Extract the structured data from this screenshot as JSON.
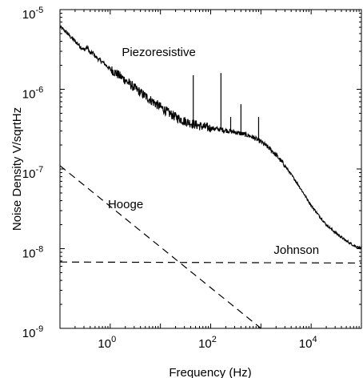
{
  "chart_data": {
    "type": "line",
    "title": "",
    "xlabel": "Frequency (Hz)",
    "ylabel": "Noise Density V/sqrtHz",
    "xscale": "log",
    "yscale": "log",
    "xlim": [
      0.1,
      100000
    ],
    "ylim": [
      1e-09,
      1e-05
    ],
    "grid": false,
    "legend": "none",
    "x_ticks": [
      {
        "value": 1,
        "base": "10",
        "exp": "0"
      },
      {
        "value": 100,
        "base": "10",
        "exp": "2"
      },
      {
        "value": 10000,
        "base": "10",
        "exp": "4"
      }
    ],
    "y_ticks": [
      {
        "value": 1e-09,
        "base": "10",
        "exp": "-9"
      },
      {
        "value": 1e-08,
        "base": "10",
        "exp": "-8"
      },
      {
        "value": 1e-07,
        "base": "10",
        "exp": "-7"
      },
      {
        "value": 1e-06,
        "base": "10",
        "exp": "-6"
      },
      {
        "value": 1e-05,
        "base": "10",
        "exp": "-5"
      }
    ],
    "annotations": [
      {
        "text": "Piezoresistive",
        "x": 1.7,
        "y": 2.6e-06
      },
      {
        "text": "Hooge",
        "x": 0.9,
        "y": 3.2e-08
      },
      {
        "text": "Johnson",
        "x": 1800,
        "y": 8.6e-09
      }
    ],
    "series": [
      {
        "color": "#000000",
        "dash": "solid",
        "noisy": true,
        "x": [
          0.1,
          0.13,
          0.16,
          0.2,
          0.25,
          0.3,
          0.35,
          0.4,
          0.45,
          0.5,
          0.6,
          0.7,
          0.8,
          0.9,
          1,
          1.3,
          1.6,
          2,
          3,
          5,
          8,
          10,
          15,
          20,
          30,
          50,
          70,
          100,
          150,
          200,
          300,
          500,
          700,
          1000,
          1500,
          2000,
          3000,
          5000,
          7000,
          10000,
          15000,
          20000,
          30000,
          50000,
          70000,
          100000
        ],
        "y": [
          6.1e-06,
          5.3e-06,
          4.6e-06,
          4e-06,
          3.5e-06,
          3.1e-06,
          3.4e-06,
          2.8e-06,
          2.9e-06,
          2.6e-06,
          2.35e-06,
          2.2e-06,
          2.05e-06,
          1.9e-06,
          1.8e-06,
          1.6e-06,
          1.45e-06,
          1.3e-06,
          1.05e-06,
          8.2e-07,
          6.6e-07,
          6e-07,
          5e-07,
          4.5e-07,
          4e-07,
          3.6e-07,
          3.4e-07,
          3.25e-07,
          3.15e-07,
          3.05e-07,
          2.9e-07,
          2.7e-07,
          2.5e-07,
          2.2e-07,
          1.8e-07,
          1.5e-07,
          1.1e-07,
          7e-08,
          5e-08,
          3.5e-08,
          2.5e-08,
          2e-08,
          1.6e-08,
          1.25e-08,
          1.1e-08,
          1e-08
        ]
      },
      {
        "color": "#000000",
        "dash": "spikes",
        "x": [
          45,
          160,
          250,
          400,
          900
        ],
        "y": [
          1.5e-06,
          1.6e-06,
          4.5e-07,
          6.5e-07,
          4.5e-07
        ]
      },
      {
        "color": "#000000",
        "dash": "dashed",
        "x": [
          0.1,
          1000
        ],
        "y": [
          1.1e-07,
          1e-09
        ]
      },
      {
        "color": "#000000",
        "dash": "dashed",
        "x": [
          0.1,
          100000
        ],
        "y": [
          6.8e-09,
          6.6e-09
        ]
      }
    ]
  }
}
